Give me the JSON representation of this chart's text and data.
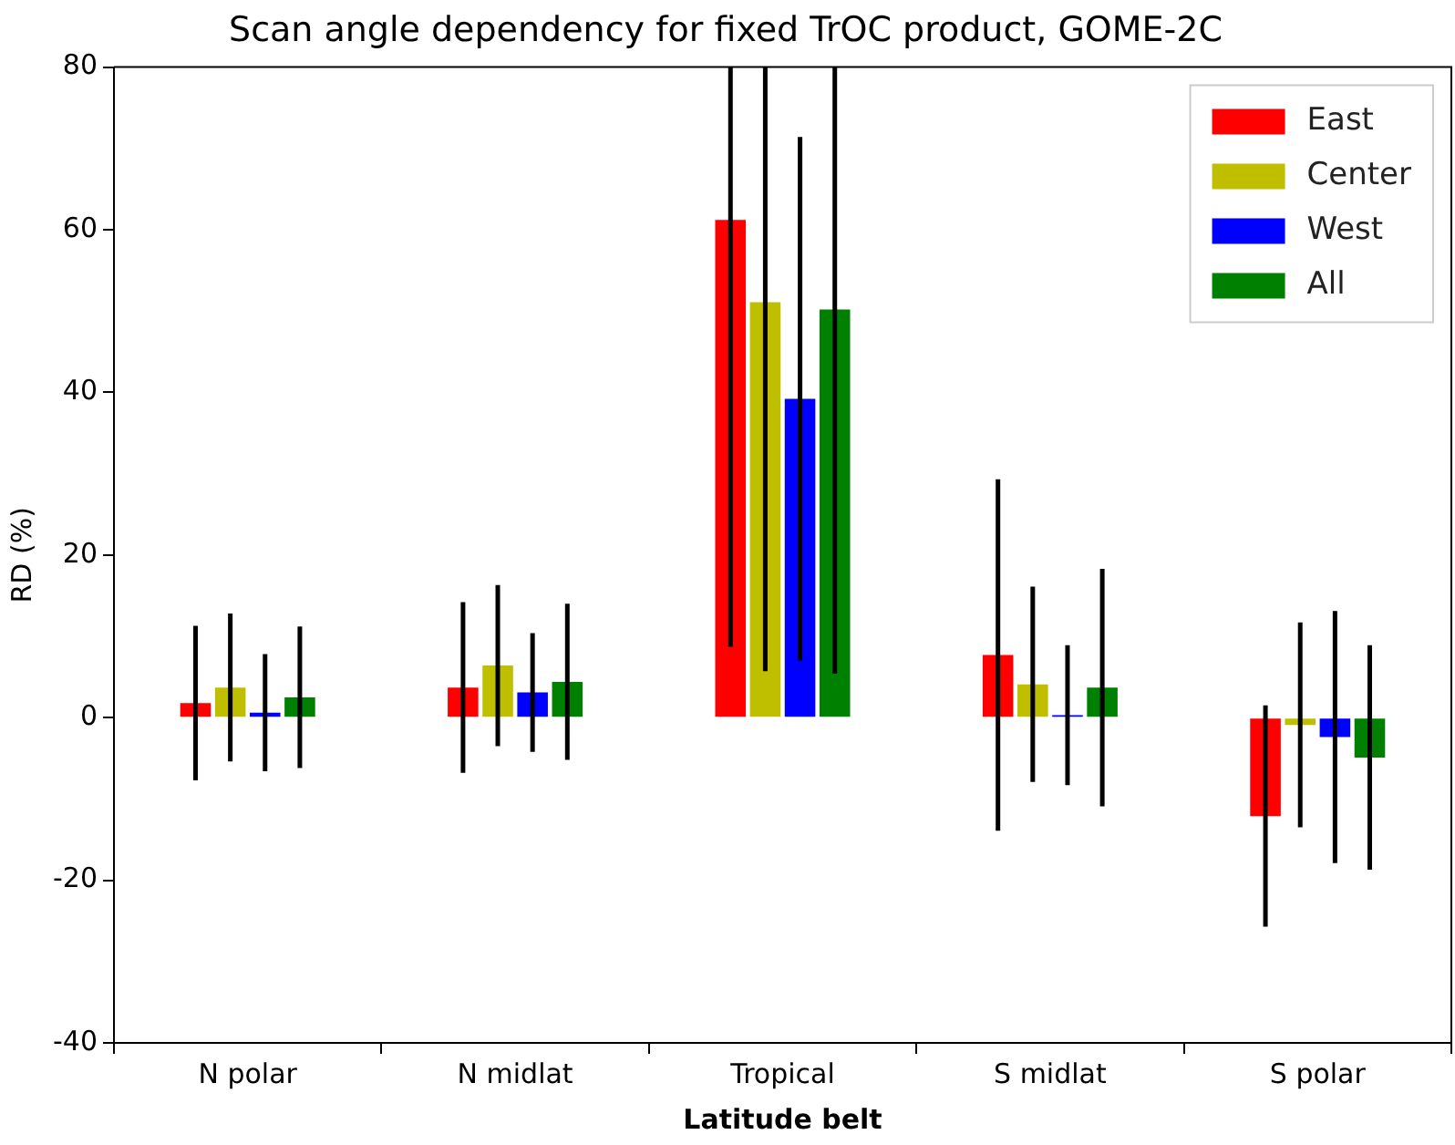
{
  "chart_data": {
    "type": "bar",
    "title": "Scan angle dependency for fixed TrOC product, GOME-2C",
    "xlabel": "Latitude belt",
    "ylabel": "RD (%)",
    "categories": [
      "N polar",
      "N midlat",
      "Tropical",
      "S midlat",
      "S polar"
    ],
    "series": [
      {
        "name": "East",
        "color": "#ff0000",
        "values": [
          1.8,
          3.7,
          61.2,
          7.7,
          -12.1
        ],
        "errors": [
          9.5,
          10.5,
          52.5,
          21.6,
          13.6
        ]
      },
      {
        "name": "Center",
        "color": "#bfbf00",
        "values": [
          3.7,
          6.4,
          51.1,
          4.1,
          -0.9
        ],
        "errors": [
          9.1,
          9.9,
          45.4,
          12,
          12.6
        ]
      },
      {
        "name": "West",
        "color": "#0000ff",
        "values": [
          0.6,
          3.1,
          39.2,
          0.3,
          -2.4
        ],
        "errors": [
          7.2,
          7.3,
          32.2,
          8.6,
          15.5
        ]
      },
      {
        "name": "All",
        "color": "#008000",
        "values": [
          2.5,
          4.4,
          50.2,
          3.7,
          -4.9
        ],
        "errors": [
          8.7,
          9.6,
          44.8,
          14.6,
          13.8
        ]
      }
    ],
    "ylim": [
      -40,
      80
    ],
    "yticks": [
      -40,
      -20,
      0,
      20,
      40,
      60,
      80
    ],
    "grid": false,
    "legend": "top right"
  }
}
